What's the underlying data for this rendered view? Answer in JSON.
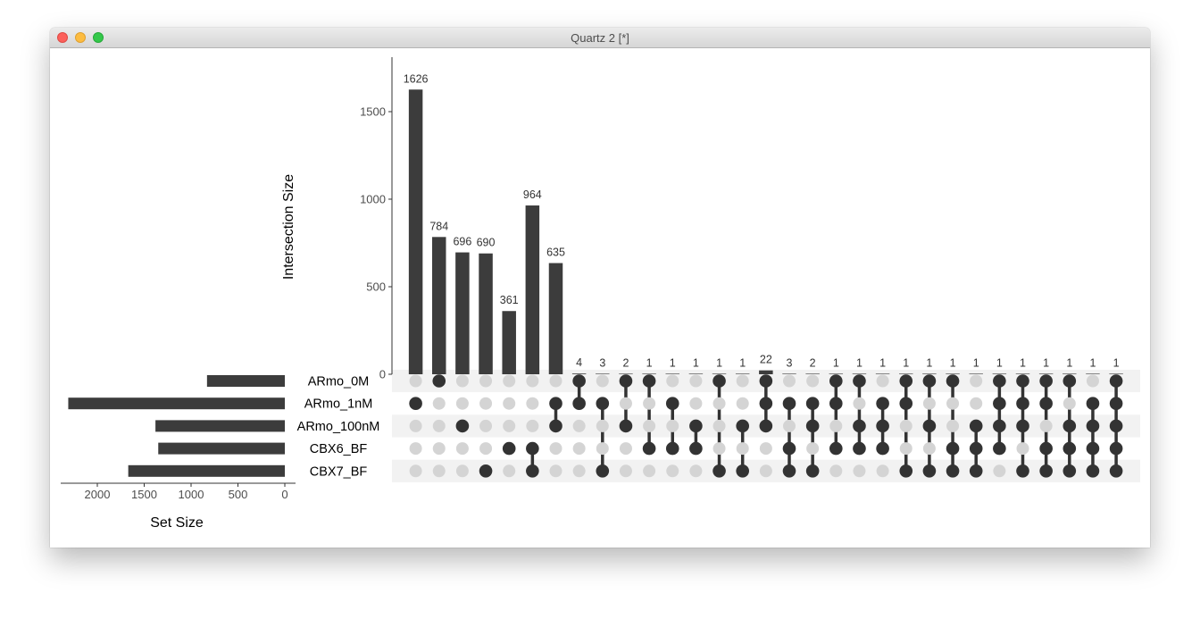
{
  "window": {
    "title": "Quartz 2 [*]"
  },
  "chart_data": {
    "type": "upset",
    "sets": [
      "ARmo_0M",
      "ARmo_1nM",
      "ARmo_100nM",
      "CBX6_BF",
      "CBX7_BF"
    ],
    "set_sizes": [
      830,
      2310,
      1380,
      1350,
      1670
    ],
    "set_size_axis": {
      "label": "Set Size",
      "ticks": [
        2000,
        1500,
        1000,
        500,
        0
      ],
      "range": [
        0,
        2400
      ]
    },
    "intersection_axis": {
      "label": "Intersection Size",
      "ticks": [
        0,
        500,
        1000,
        1500
      ],
      "range": [
        0,
        1760
      ]
    },
    "intersections": [
      {
        "value": 1626,
        "members": [
          "ARmo_1nM"
        ]
      },
      {
        "value": 784,
        "members": [
          "ARmo_0M"
        ]
      },
      {
        "value": 696,
        "members": [
          "ARmo_100nM"
        ]
      },
      {
        "value": 690,
        "members": [
          "CBX7_BF"
        ]
      },
      {
        "value": 361,
        "members": [
          "CBX6_BF"
        ]
      },
      {
        "value": 964,
        "members": [
          "CBX6_BF",
          "CBX7_BF"
        ]
      },
      {
        "value": 635,
        "members": [
          "ARmo_1nM",
          "ARmo_100nM"
        ]
      },
      {
        "value": 4,
        "members": [
          "ARmo_0M",
          "ARmo_1nM"
        ]
      },
      {
        "value": 3,
        "members": [
          "ARmo_1nM",
          "CBX7_BF"
        ]
      },
      {
        "value": 2,
        "members": [
          "ARmo_0M",
          "ARmo_100nM"
        ]
      },
      {
        "value": 1,
        "members": [
          "ARmo_0M",
          "CBX6_BF"
        ]
      },
      {
        "value": 1,
        "members": [
          "ARmo_1nM",
          "CBX6_BF"
        ]
      },
      {
        "value": 1,
        "members": [
          "ARmo_100nM",
          "CBX6_BF"
        ]
      },
      {
        "value": 1,
        "members": [
          "ARmo_0M",
          "CBX7_BF"
        ]
      },
      {
        "value": 1,
        "members": [
          "ARmo_100nM",
          "CBX7_BF"
        ]
      },
      {
        "value": 22,
        "members": [
          "ARmo_0M",
          "ARmo_1nM",
          "ARmo_100nM"
        ]
      },
      {
        "value": 3,
        "members": [
          "ARmo_1nM",
          "CBX6_BF",
          "CBX7_BF"
        ]
      },
      {
        "value": 2,
        "members": [
          "ARmo_1nM",
          "ARmo_100nM",
          "CBX7_BF"
        ]
      },
      {
        "value": 1,
        "members": [
          "ARmo_0M",
          "ARmo_1nM",
          "CBX6_BF"
        ]
      },
      {
        "value": 1,
        "members": [
          "ARmo_0M",
          "ARmo_100nM",
          "CBX6_BF"
        ]
      },
      {
        "value": 1,
        "members": [
          "ARmo_1nM",
          "ARmo_100nM",
          "CBX6_BF"
        ]
      },
      {
        "value": 1,
        "members": [
          "ARmo_0M",
          "ARmo_1nM",
          "CBX7_BF"
        ]
      },
      {
        "value": 1,
        "members": [
          "ARmo_0M",
          "ARmo_100nM",
          "CBX7_BF"
        ]
      },
      {
        "value": 1,
        "members": [
          "ARmo_0M",
          "CBX6_BF",
          "CBX7_BF"
        ]
      },
      {
        "value": 1,
        "members": [
          "ARmo_100nM",
          "CBX6_BF",
          "CBX7_BF"
        ]
      },
      {
        "value": 1,
        "members": [
          "ARmo_0M",
          "ARmo_1nM",
          "ARmo_100nM",
          "CBX6_BF"
        ]
      },
      {
        "value": 1,
        "members": [
          "ARmo_0M",
          "ARmo_1nM",
          "ARmo_100nM",
          "CBX7_BF"
        ]
      },
      {
        "value": 1,
        "members": [
          "ARmo_0M",
          "ARmo_1nM",
          "CBX6_BF",
          "CBX7_BF"
        ]
      },
      {
        "value": 1,
        "members": [
          "ARmo_0M",
          "ARmo_100nM",
          "CBX6_BF",
          "CBX7_BF"
        ]
      },
      {
        "value": 1,
        "members": [
          "ARmo_1nM",
          "ARmo_100nM",
          "CBX6_BF",
          "CBX7_BF"
        ]
      },
      {
        "value": 1,
        "members": [
          "ARmo_0M",
          "ARmo_1nM",
          "ARmo_100nM",
          "CBX6_BF",
          "CBX7_BF"
        ]
      }
    ],
    "colors": {
      "bar": "#3c3c3c",
      "dot_active": "#333333",
      "dot_inactive": "#d4d4d4",
      "row_stripe": "#f2f2f2",
      "axis": "#333333",
      "tick_text": "#4d4d4d"
    }
  }
}
